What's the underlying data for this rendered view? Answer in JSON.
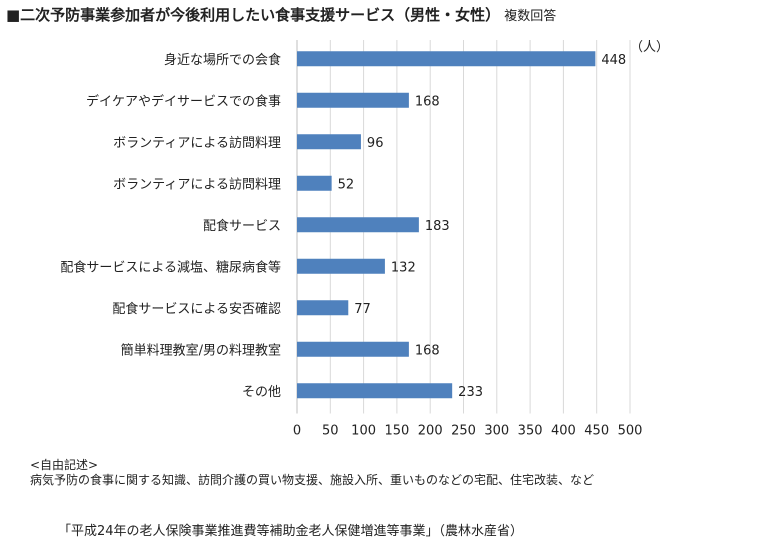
{
  "header": {
    "title": "■二次予防事業参加者が今後利用したい食事支援サービス（男性・女性）",
    "subtitle": "複数回答"
  },
  "colors": {
    "bar": "#4f81bd",
    "grid": "#d9d9d9",
    "text": "#222222"
  },
  "chart_data": {
    "type": "bar",
    "orientation": "horizontal",
    "unit_label": "（人）",
    "categories": [
      "身近な場所での会食",
      "デイケアやデイサービスでの食事",
      "ボランティアによる訪問料理",
      "ボランティアによる訪問料理",
      "配食サービス",
      "配食サービスによる減塩、糖尿病食等",
      "配食サービスによる安否確認",
      "簡単料理教室/男の料理教室",
      "その他"
    ],
    "values": [
      448,
      168,
      96,
      52,
      183,
      132,
      77,
      168,
      233
    ],
    "xlim": [
      0,
      500
    ],
    "ticks": [
      0,
      50,
      100,
      150,
      200,
      250,
      300,
      350,
      400,
      450,
      500
    ],
    "grid": true,
    "legend": "none"
  },
  "notes": {
    "heading": "<自由記述>",
    "body": "病気予防の食事に関する知識、訪問介護の買い物支援、施設入所、重いものなどの宅配、住宅改装、など"
  },
  "source": "「平成24年の老人保険事業推進費等補助金老人保健増進等事業」（農林水産省）"
}
